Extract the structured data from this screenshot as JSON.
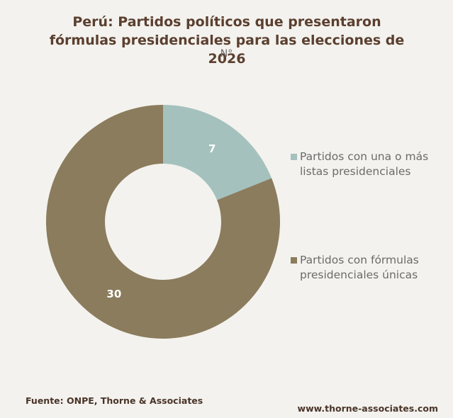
{
  "chart_data": {
    "type": "donut",
    "title": "Perú: Partidos políticos que presentaron fórmulas presidenciales para las elecciones de 2026",
    "subtitle": "N°",
    "categories": [
      "Partidos con una o más listas presidenciales",
      "Partidos con fórmulas presidenciales únicas"
    ],
    "values": [
      7,
      30
    ],
    "colors": [
      "#a4c1bd",
      "#8b7c5d"
    ],
    "source": "Fuente: ONPE, Thorne & Associates",
    "website": "www.thorne-associates.com"
  }
}
